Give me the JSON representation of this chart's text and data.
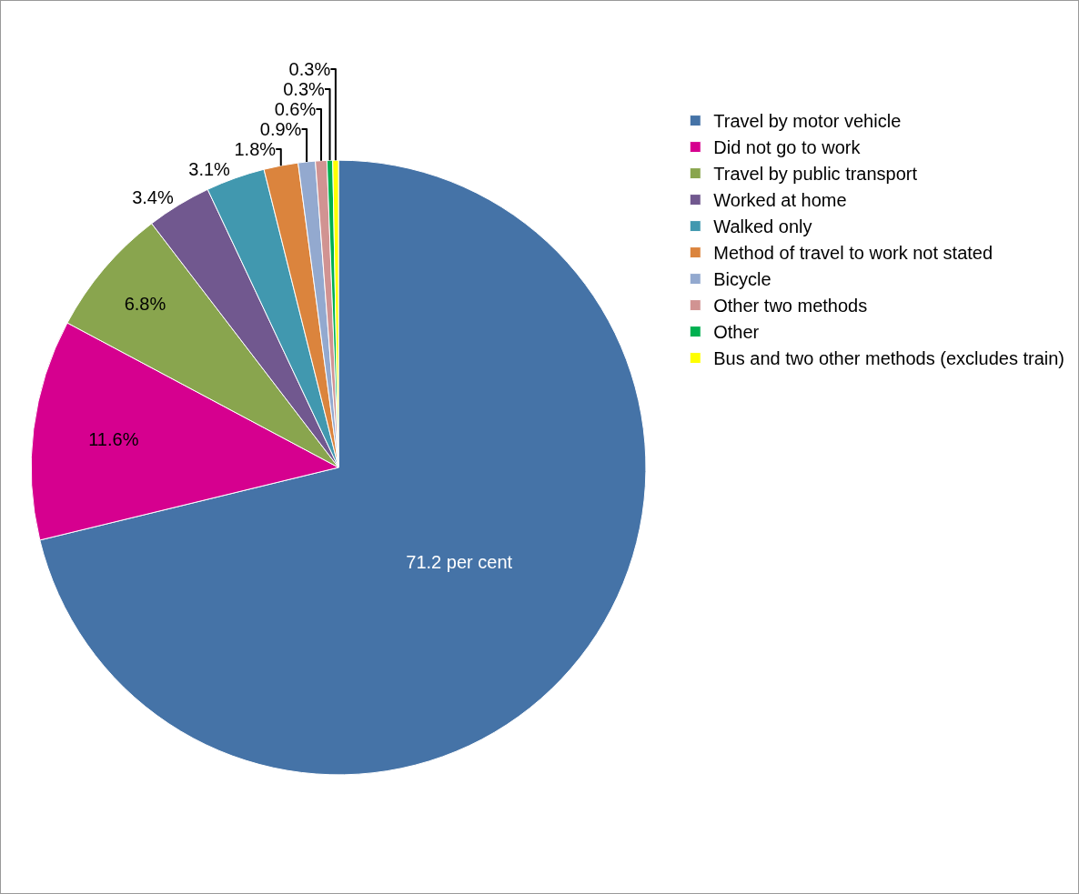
{
  "chart_data": {
    "type": "pie",
    "categories": [
      "Travel by motor vehicle",
      "Did not go to work",
      "Travel by public transport",
      "Worked at home",
      "Walked only",
      "Method of travel to work not stated",
      "Bicycle",
      "Other two methods",
      "Other",
      "Bus and two other methods (excludes train)"
    ],
    "values": [
      71.2,
      11.6,
      6.8,
      3.4,
      3.1,
      1.8,
      0.9,
      0.6,
      0.3,
      0.3
    ],
    "value_labels": [
      "71.2 per cent",
      "11.6%",
      "6.8%",
      "3.4%",
      "3.1%",
      "1.8%",
      "0.9%",
      "0.6%",
      "0.3%",
      "0.3%"
    ],
    "colors": [
      "#4573a7",
      "#d6008f",
      "#89a54e",
      "#71588f",
      "#4198af",
      "#db843d",
      "#93a9cf",
      "#d19392",
      "#00b050",
      "#ffff00"
    ],
    "legend": "right"
  }
}
